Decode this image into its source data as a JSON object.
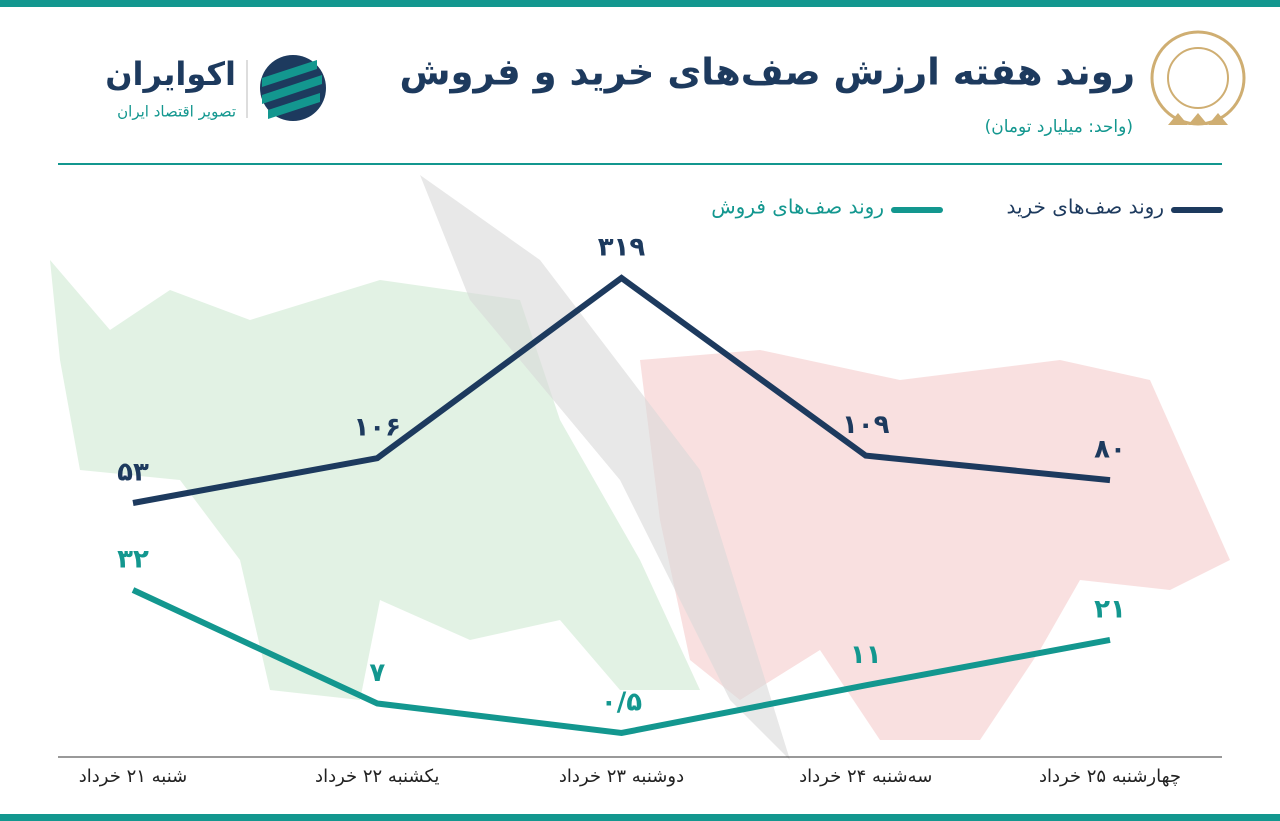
{
  "brand": {
    "name": "اکوایران",
    "tagline": "تصویر اقتصاد ایران"
  },
  "chart_data": {
    "type": "line",
    "title": "روند هفته ارزش صف‌های خرید و فروش",
    "subtitle": "(واحد: میلیارد تومان)",
    "categories": [
      "شنبه ۲۱ خرداد",
      "یکشنبه ۲۲ خرداد",
      "دوشنبه ۲۳ خرداد",
      "سه‌شنبه ۲۴ خرداد",
      "چهارشنبه ۲۵ خرداد"
    ],
    "series": [
      {
        "name": "روند صف‌های خرید",
        "color": "#1d3a5e",
        "values": [
          53,
          106,
          319,
          109,
          80
        ],
        "value_labels": [
          "۵۳",
          "۱۰۶",
          "۳۱۹",
          "۱۰۹",
          "۸۰"
        ]
      },
      {
        "name": "روند صف‌های فروش",
        "color": "#13978f",
        "values": [
          32,
          7,
          0.5,
          11,
          21
        ],
        "value_labels": [
          "۳۲",
          "۷",
          "۰/۵",
          "۱۱",
          "۲۱"
        ]
      }
    ]
  }
}
